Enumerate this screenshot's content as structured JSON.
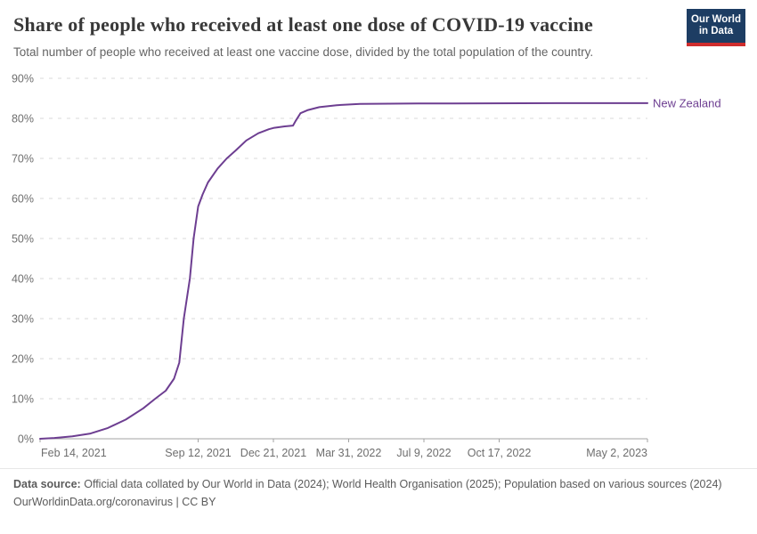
{
  "header": {
    "logo": {
      "line1": "Our World",
      "line2": "in Data"
    }
  },
  "colors": {
    "line": "#6D3E91",
    "entity_label": "#6D3E91",
    "grid": "#d9d9d9",
    "axis": "#a3a3a3",
    "tick_text": "#6e6e6e",
    "title_text": "#383838",
    "subtitle_text": "#646464",
    "footer_text": "#5b5b5b",
    "logo_bg": "#1d3d63",
    "logo_bar": "#cf2d2d"
  },
  "chart_data": {
    "type": "line",
    "title": "Share of people who received at least one dose of COVID-19 vaccine",
    "subtitle": "Total number of people who received at least one vaccine dose, divided by the total population of the country.",
    "xlabel": "",
    "ylabel": "",
    "grid": true,
    "legend_position": "end-of-line",
    "ylim": [
      0,
      90
    ],
    "y_ticks": [
      0,
      10,
      20,
      30,
      40,
      50,
      60,
      70,
      80,
      90
    ],
    "y_tick_suffix": "%",
    "x_range": [
      "2021-02-14",
      "2023-05-02"
    ],
    "x_ticks": [
      {
        "date": "2021-02-14",
        "label": "Feb 14, 2021"
      },
      {
        "date": "2021-09-12",
        "label": "Sep 12, 2021"
      },
      {
        "date": "2021-12-21",
        "label": "Dec 21, 2021"
      },
      {
        "date": "2022-03-31",
        "label": "Mar 31, 2022"
      },
      {
        "date": "2022-07-09",
        "label": "Jul 9, 2022"
      },
      {
        "date": "2022-10-17",
        "label": "Oct 17, 2022"
      },
      {
        "date": "2023-05-02",
        "label": "May 2, 2023"
      }
    ],
    "series": [
      {
        "name": "New Zealand",
        "color": "#6D3E91",
        "points": [
          [
            "2021-02-14",
            0
          ],
          [
            "2021-03-05",
            0.2
          ],
          [
            "2021-03-29",
            0.6
          ],
          [
            "2021-04-22",
            1.3
          ],
          [
            "2021-05-15",
            2.7
          ],
          [
            "2021-06-08",
            4.8
          ],
          [
            "2021-07-01",
            7.6
          ],
          [
            "2021-07-17",
            10
          ],
          [
            "2021-07-31",
            12
          ],
          [
            "2021-08-11",
            15
          ],
          [
            "2021-08-18",
            19
          ],
          [
            "2021-08-24",
            30
          ],
          [
            "2021-09-01",
            40
          ],
          [
            "2021-09-06",
            50
          ],
          [
            "2021-09-12",
            58
          ],
          [
            "2021-09-18",
            61
          ],
          [
            "2021-09-25",
            64
          ],
          [
            "2021-10-08",
            67.5
          ],
          [
            "2021-10-20",
            70
          ],
          [
            "2021-11-01",
            72
          ],
          [
            "2021-11-15",
            74.5
          ],
          [
            "2021-12-01",
            76.3
          ],
          [
            "2021-12-15",
            77.3
          ],
          [
            "2021-12-21",
            77.6
          ],
          [
            "2022-01-05",
            78
          ],
          [
            "2022-01-16",
            78.2
          ],
          [
            "2022-01-20",
            79.5
          ],
          [
            "2022-01-26",
            81.3
          ],
          [
            "2022-02-05",
            82.1
          ],
          [
            "2022-02-20",
            82.8
          ],
          [
            "2022-03-15",
            83.3
          ],
          [
            "2022-04-15",
            83.6
          ],
          [
            "2022-07-01",
            83.7
          ],
          [
            "2023-01-01",
            83.8
          ],
          [
            "2023-05-02",
            83.8
          ]
        ]
      }
    ]
  },
  "footer": {
    "source_label": "Data source:",
    "source_text": "Official data collated by Our World in Data (2024); World Health Organisation (2025); Population based on various sources (2024)",
    "citation_link": "OurWorldinData.org/coronavirus",
    "citation_sep": "|",
    "citation_license": "CC BY"
  }
}
